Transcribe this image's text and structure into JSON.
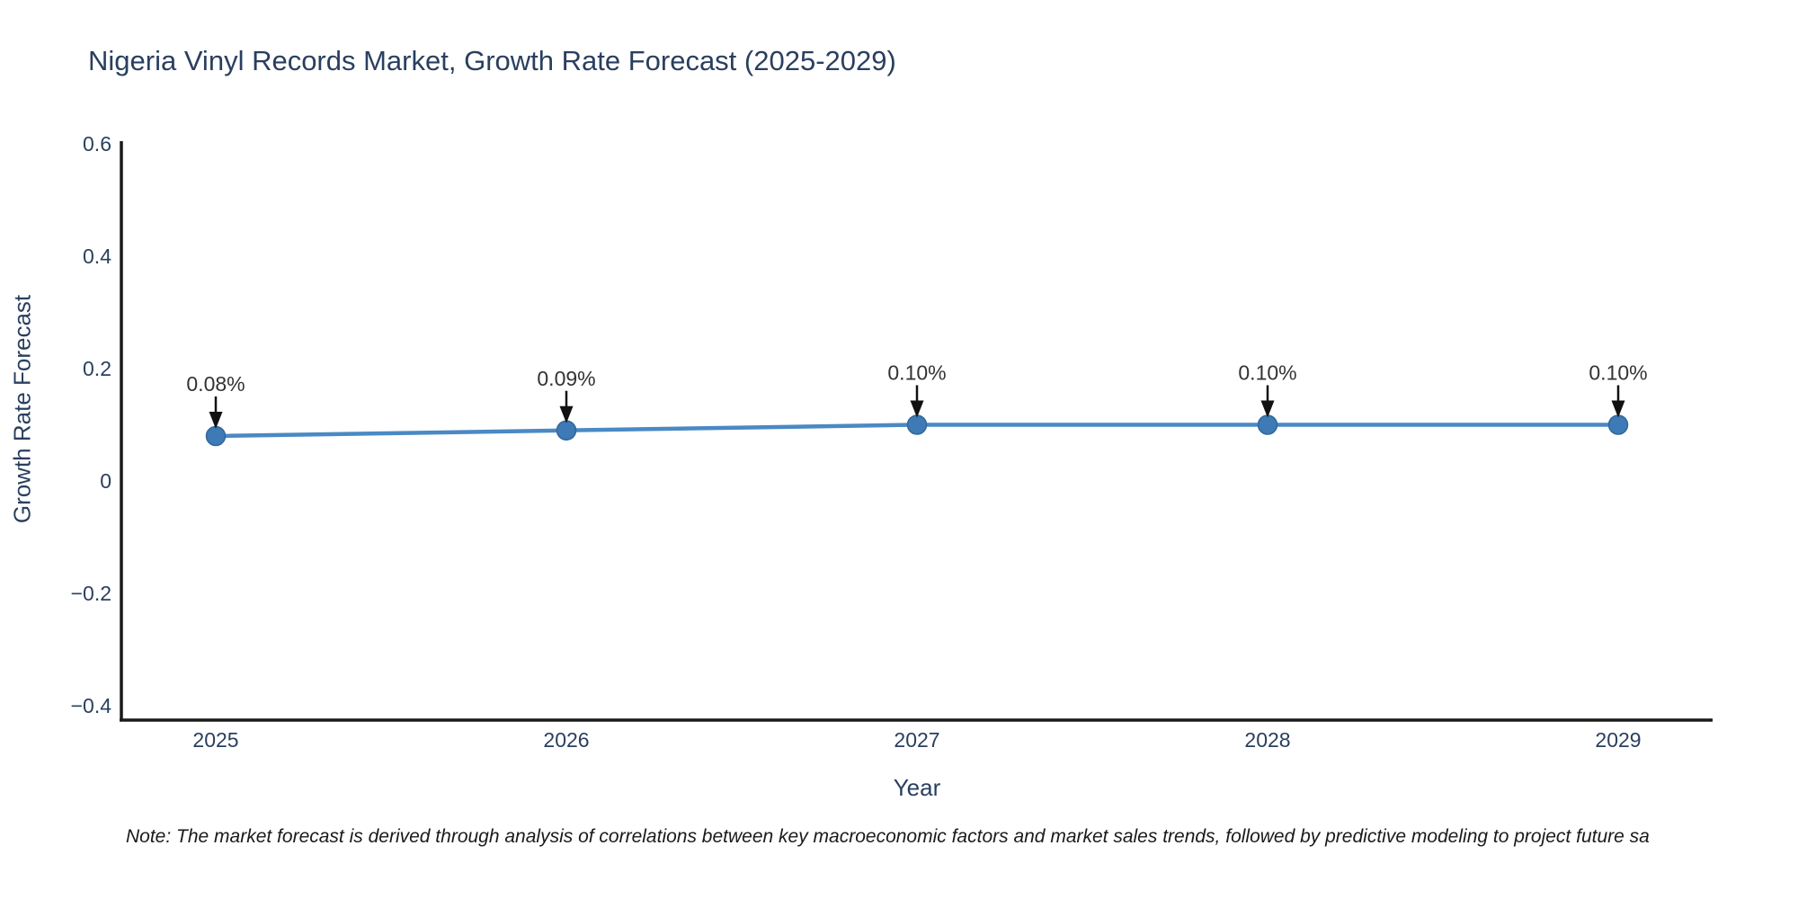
{
  "note": "Note: The market forecast is derived through analysis of correlations between key macroeconomic factors and market sales trends, followed by predictive modeling to project future sa",
  "chart_data": {
    "type": "line",
    "title": "Nigeria Vinyl Records Market, Growth Rate Forecast (2025-2029)",
    "xlabel": "Year",
    "ylabel": "Growth Rate Forecast",
    "x": [
      2025,
      2026,
      2027,
      2028,
      2029
    ],
    "x_tick_labels": [
      "2025",
      "2026",
      "2027",
      "2028",
      "2029"
    ],
    "values": [
      0.08,
      0.09,
      0.1,
      0.1,
      0.1
    ],
    "point_labels": [
      "0.08%",
      "0.09%",
      "0.10%",
      "0.10%",
      "0.10%"
    ],
    "y_ticks": [
      0.6,
      0.4,
      0.2,
      0,
      -0.2,
      -0.4
    ],
    "y_tick_labels": [
      "0.6",
      "0.4",
      "0.2",
      "0",
      "−0.2",
      "−0.4"
    ],
    "ylim": [
      -0.43,
      0.6
    ],
    "xlim": [
      2024.73,
      2029.27
    ],
    "grid": false,
    "legend": "none",
    "colors": {
      "line": "#4a89c4",
      "marker_fill": "#3d7ab6",
      "marker_edge": "#32669a",
      "arrow": "#111111",
      "axis": "#1a1a1a",
      "tick_text": "#2a3f5f",
      "title_text": "#2a3f5f",
      "annotation_text": "#333333"
    }
  }
}
